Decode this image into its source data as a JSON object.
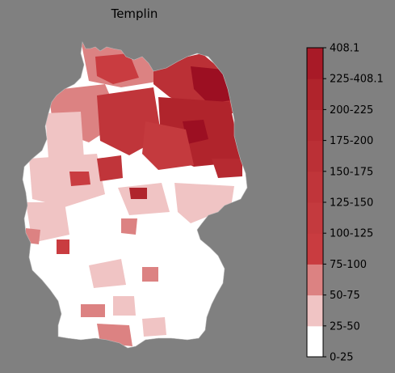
{
  "map": {
    "title": "Templin"
  },
  "legend": {
    "labels": [
      "0-25",
      "25-50",
      "50-75",
      "75-100",
      "100-125",
      "125-150",
      "150-175",
      "175-200",
      "200-225",
      "225-408.1",
      "408.1"
    ],
    "colors": [
      "#ffffff",
      "#f0c4c4",
      "#dc8282",
      "#c93c40",
      "#c43a3e",
      "#c0353a",
      "#bb3036",
      "#b62a31",
      "#b0242c",
      "#a81a27",
      "#9c0f22"
    ]
  }
}
